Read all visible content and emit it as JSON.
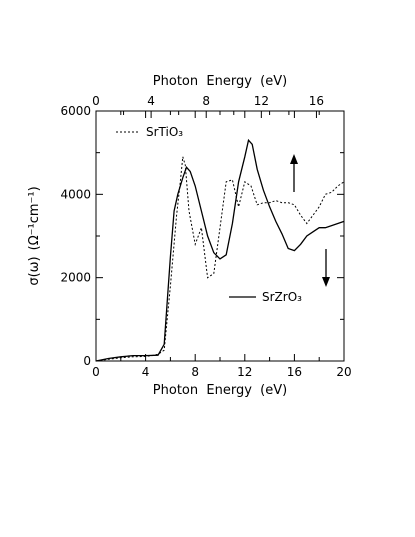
{
  "chart_data": {
    "type": "line",
    "title": "",
    "xlabel": "Photon  Energy  (eV)",
    "x2label": "Photon  Energy  (eV)",
    "ylabel_main": "σ(ω)",
    "ylabel_units": "(Ω⁻¹cm⁻¹)",
    "xlim": [
      0,
      20
    ],
    "x2lim": [
      0,
      18
    ],
    "ylim": [
      0,
      6000
    ],
    "grid": false,
    "x_ticks": [
      {
        "value": 0,
        "label": "0"
      },
      {
        "value": 4,
        "label": "4"
      },
      {
        "value": 8,
        "label": "8"
      },
      {
        "value": 12,
        "label": "12"
      },
      {
        "value": 16,
        "label": "16"
      },
      {
        "value": 20,
        "label": "20"
      }
    ],
    "x2_ticks": [
      {
        "value": 0,
        "label": "0"
      },
      {
        "value": 4,
        "label": "4"
      },
      {
        "value": 8,
        "label": "8"
      },
      {
        "value": 12,
        "label": "12"
      },
      {
        "value": 16,
        "label": "16"
      }
    ],
    "y_ticks": [
      {
        "value": 0,
        "label": "0"
      },
      {
        "value": 2000,
        "label": "2000"
      },
      {
        "value": 4000,
        "label": "4000"
      },
      {
        "value": 6000,
        "label": "6000"
      }
    ],
    "series": [
      {
        "name": "SrTiO₃",
        "style": "dotted",
        "x": [
          0,
          1,
          2,
          3,
          4,
          4.5,
          5,
          5.5,
          6,
          6.5,
          6.8,
          7.0,
          7.2,
          7.5,
          8.0,
          8.5,
          9.0,
          9.5,
          10.0,
          10.5,
          11.0,
          11.5,
          12.0,
          12.5,
          13.0,
          13.5,
          14.0,
          14.5,
          15.0,
          15.5,
          16.0,
          16.5,
          17.0,
          17.5,
          18.0,
          18.5,
          19.0,
          19.5,
          20.0
        ],
        "y": [
          0,
          40,
          80,
          100,
          110,
          130,
          160,
          260,
          1800,
          3500,
          4300,
          4900,
          4700,
          3600,
          2800,
          3200,
          2000,
          2100,
          3200,
          4300,
          4350,
          3700,
          4300,
          4200,
          3750,
          3800,
          3800,
          3850,
          3800,
          3800,
          3750,
          3500,
          3300,
          3500,
          3700,
          4000,
          4050,
          4200,
          4300
        ]
      },
      {
        "name": "SrZrO₃",
        "style": "solid",
        "x": [
          0,
          1,
          2,
          3,
          4,
          5,
          5.5,
          6,
          6.3,
          6.6,
          7.0,
          7.3,
          7.6,
          8.0,
          8.5,
          9.0,
          9.5,
          10.0,
          10.5,
          11.0,
          11.5,
          12.0,
          12.3,
          12.6,
          13.0,
          13.5,
          14.0,
          14.5,
          15.0,
          15.5,
          16.0,
          16.5,
          17.0,
          17.5,
          18.0,
          18.5,
          19.0,
          19.5,
          20.0
        ],
        "y": [
          0,
          60,
          100,
          130,
          130,
          140,
          400,
          2500,
          3600,
          4000,
          4400,
          4650,
          4550,
          4200,
          3600,
          3000,
          2600,
          2450,
          2550,
          3300,
          4300,
          4900,
          5300,
          5200,
          4600,
          4100,
          3700,
          3350,
          3050,
          2700,
          2650,
          2800,
          3000,
          3100,
          3200,
          3200,
          3250,
          3300,
          3350
        ]
      }
    ],
    "annotations": [
      {
        "type": "arrow",
        "direction": "up",
        "series": "SrTiO₃"
      },
      {
        "type": "arrow",
        "direction": "down",
        "series": "SrZrO₃"
      }
    ]
  }
}
